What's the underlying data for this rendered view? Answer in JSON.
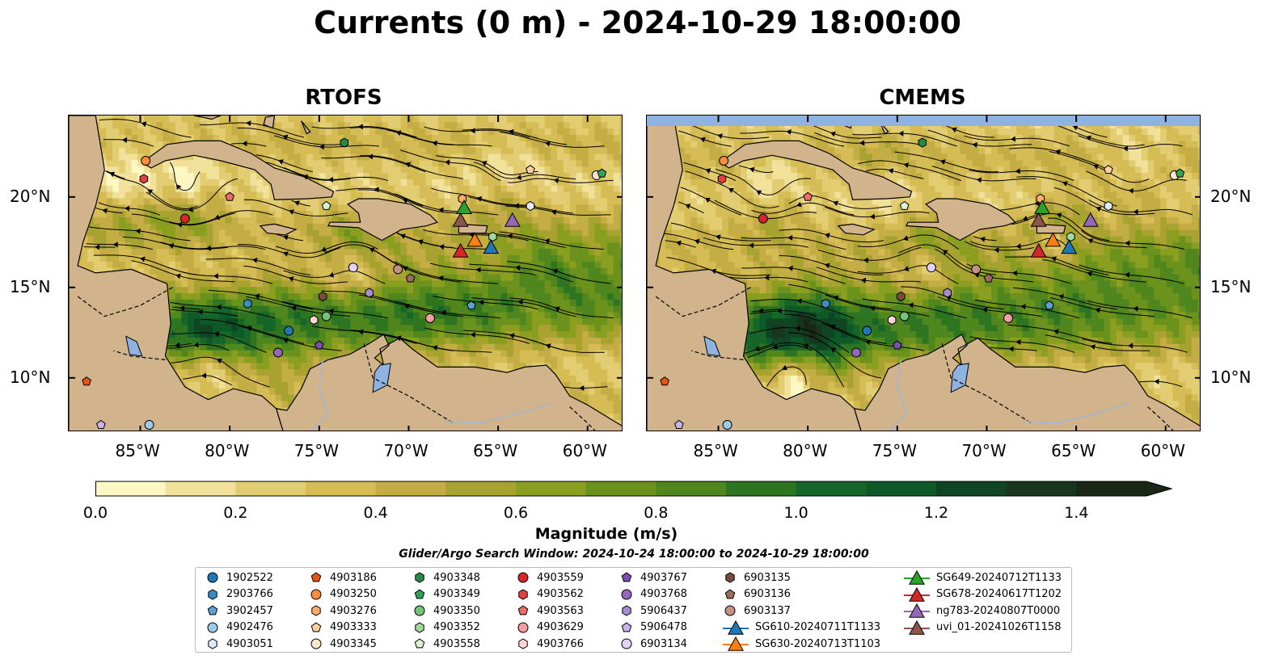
{
  "title": "Currents (0 m) - 2024-10-29 18:00:00",
  "panels": [
    {
      "title": "RTOFS",
      "key": "rtofs"
    },
    {
      "title": "CMEMS",
      "key": "cmems"
    }
  ],
  "map": {
    "lon_range": [
      -89,
      -58
    ],
    "lat_range": [
      7,
      24.5
    ],
    "lon_ticks": [
      "85°W",
      "80°W",
      "75°W",
      "70°W",
      "65°W",
      "60°W"
    ],
    "lon_tick_values": [
      -85,
      -80,
      -75,
      -70,
      -65,
      -60
    ],
    "lat_ticks": [
      "20°N",
      "15°N",
      "10°N"
    ],
    "lat_tick_values": [
      20,
      15,
      10
    ],
    "land_color": "#d2b48c",
    "water_feature_color": "#8fb3e0"
  },
  "colorbar": {
    "label": "Magnitude (m/s)",
    "ticks": [
      "0.0",
      "0.2",
      "0.4",
      "0.6",
      "0.8",
      "1.0",
      "1.2",
      "1.4"
    ],
    "tick_values": [
      0,
      0.2,
      0.4,
      0.6,
      0.8,
      1.0,
      1.2,
      1.4
    ],
    "range": [
      0,
      1.5
    ],
    "extend": "max",
    "colors": [
      "#fdf7c3",
      "#f1e19a",
      "#e3cd72",
      "#d6bc55",
      "#c4ad44",
      "#a8a230",
      "#8a9e1f",
      "#6b921c",
      "#4f861d",
      "#2e7521",
      "#16662a",
      "#0d5a28",
      "#0f4523",
      "#17361d",
      "#1a2717"
    ]
  },
  "search_window": "Glider/Argo Search Window: 2024-10-24 18:00:00 to 2024-10-29 18:00:00",
  "legend": [
    {
      "label": "1902522",
      "marker": "circle",
      "color": "#1f77b4"
    },
    {
      "label": "2903766",
      "marker": "hexagon",
      "color": "#3a8cc4"
    },
    {
      "label": "3902457",
      "marker": "pentagon",
      "color": "#5aa2d6"
    },
    {
      "label": "4902476",
      "marker": "circle",
      "color": "#9ecae9"
    },
    {
      "label": "4903051",
      "marker": "hexagon",
      "color": "#deebf7"
    },
    {
      "label": "4903186",
      "marker": "pentagon",
      "color": "#e6550d"
    },
    {
      "label": "4903250",
      "marker": "circle",
      "color": "#fd8d3c"
    },
    {
      "label": "4903276",
      "marker": "hexagon",
      "color": "#fdae6b"
    },
    {
      "label": "4903333",
      "marker": "pentagon",
      "color": "#fdd0a2"
    },
    {
      "label": "4903345",
      "marker": "circle",
      "color": "#fee6ce"
    },
    {
      "label": "4903348",
      "marker": "hexagon",
      "color": "#238b45"
    },
    {
      "label": "4903349",
      "marker": "pentagon",
      "color": "#31a354"
    },
    {
      "label": "4903350",
      "marker": "circle",
      "color": "#74c476"
    },
    {
      "label": "4903352",
      "marker": "hexagon",
      "color": "#a1d99b"
    },
    {
      "label": "4903558",
      "marker": "pentagon",
      "color": "#d9f2d0"
    },
    {
      "label": "4903559",
      "marker": "circle",
      "color": "#d62728"
    },
    {
      "label": "4903562",
      "marker": "hexagon",
      "color": "#e3413f"
    },
    {
      "label": "4903563",
      "marker": "pentagon",
      "color": "#f06a6a"
    },
    {
      "label": "4903629",
      "marker": "circle",
      "color": "#f5a0a0"
    },
    {
      "label": "4903766",
      "marker": "hexagon",
      "color": "#fcd5d5"
    },
    {
      "label": "4903767",
      "marker": "pentagon",
      "color": "#7b4fb0"
    },
    {
      "label": "4903768",
      "marker": "circle",
      "color": "#9467bd"
    },
    {
      "label": "5906437",
      "marker": "hexagon",
      "color": "#a98bd3"
    },
    {
      "label": "5906478",
      "marker": "pentagon",
      "color": "#c8b2e6"
    },
    {
      "label": "6903134",
      "marker": "circle",
      "color": "#e4d2f7"
    },
    {
      "label": "6903135",
      "marker": "hexagon",
      "color": "#7b4a3e"
    },
    {
      "label": "6903136",
      "marker": "pentagon",
      "color": "#9c6b5b"
    },
    {
      "label": "6903137",
      "marker": "circle",
      "color": "#c49182"
    },
    {
      "label": "SG610-20240711T1133",
      "marker": "triangle-line",
      "color": "#1f77b4"
    },
    {
      "label": "SG630-20240713T1103",
      "marker": "triangle-line",
      "color": "#ff7f0e"
    },
    {
      "label": "SG649-20240712T1133",
      "marker": "triangle-line",
      "color": "#2ca02c"
    },
    {
      "label": "SG678-20240617T1202",
      "marker": "triangle-line",
      "color": "#d62728"
    },
    {
      "label": "ng783-20240807T0000",
      "marker": "triangle-line",
      "color": "#9467bd"
    },
    {
      "label": "uvi_01-20241026T1158",
      "marker": "triangle-line",
      "color": "#8c564b"
    }
  ],
  "markers": [
    {
      "id": "1902522",
      "lon": -76.7,
      "lat": 12.6
    },
    {
      "id": "2903766",
      "lon": -79.0,
      "lat": 14.1
    },
    {
      "id": "3902457",
      "lon": -66.5,
      "lat": 14.0
    },
    {
      "id": "4902476",
      "lon": -84.5,
      "lat": 7.4
    },
    {
      "id": "4903051",
      "lon": -63.2,
      "lat": 19.5
    },
    {
      "id": "4903186",
      "lon": -88.0,
      "lat": 9.8
    },
    {
      "id": "4903250",
      "lon": -84.7,
      "lat": 22.0
    },
    {
      "id": "4903276",
      "lon": -67.0,
      "lat": 19.9
    },
    {
      "id": "4903333",
      "lon": -63.2,
      "lat": 21.5
    },
    {
      "id": "4903345",
      "lon": -59.5,
      "lat": 21.2
    },
    {
      "id": "4903348",
      "lon": -73.6,
      "lat": 23.0
    },
    {
      "id": "4903349",
      "lon": -59.2,
      "lat": 21.3
    },
    {
      "id": "4903350",
      "lon": -74.6,
      "lat": 13.4
    },
    {
      "id": "4903352",
      "lon": -65.3,
      "lat": 17.8
    },
    {
      "id": "4903558",
      "lon": -74.6,
      "lat": 19.5
    },
    {
      "id": "4903559",
      "lon": -82.5,
      "lat": 18.8
    },
    {
      "id": "4903562",
      "lon": -84.8,
      "lat": 21.0
    },
    {
      "id": "4903563",
      "lon": -80.0,
      "lat": 20.0
    },
    {
      "id": "4903629",
      "lon": -68.8,
      "lat": 13.3
    },
    {
      "id": "4903766",
      "lon": -75.3,
      "lat": 13.2
    },
    {
      "id": "4903767",
      "lon": -75.0,
      "lat": 11.8
    },
    {
      "id": "4903768",
      "lon": -77.3,
      "lat": 11.4
    },
    {
      "id": "5906437",
      "lon": -72.2,
      "lat": 14.7
    },
    {
      "id": "5906478",
      "lon": -87.2,
      "lat": 7.4
    },
    {
      "id": "6903134",
      "lon": -73.1,
      "lat": 16.1
    },
    {
      "id": "6903135",
      "lon": -74.8,
      "lat": 14.5
    },
    {
      "id": "6903136",
      "lon": -69.9,
      "lat": 15.5
    },
    {
      "id": "6903137",
      "lon": -70.6,
      "lat": 16.0
    },
    {
      "id": "SG610-20240711T1133",
      "lon": -65.4,
      "lat": 17.2
    },
    {
      "id": "SG630-20240713T1103",
      "lon": -66.3,
      "lat": 17.6
    },
    {
      "id": "SG649-20240712T1133",
      "lon": -66.9,
      "lat": 19.4
    },
    {
      "id": "SG678-20240617T1202",
      "lon": -67.1,
      "lat": 17.0
    },
    {
      "id": "ng783-20240807T0000",
      "lon": -64.2,
      "lat": 18.7
    },
    {
      "id": "uvi_01-20241026T1158",
      "lon": -67.1,
      "lat": 18.7
    }
  ]
}
